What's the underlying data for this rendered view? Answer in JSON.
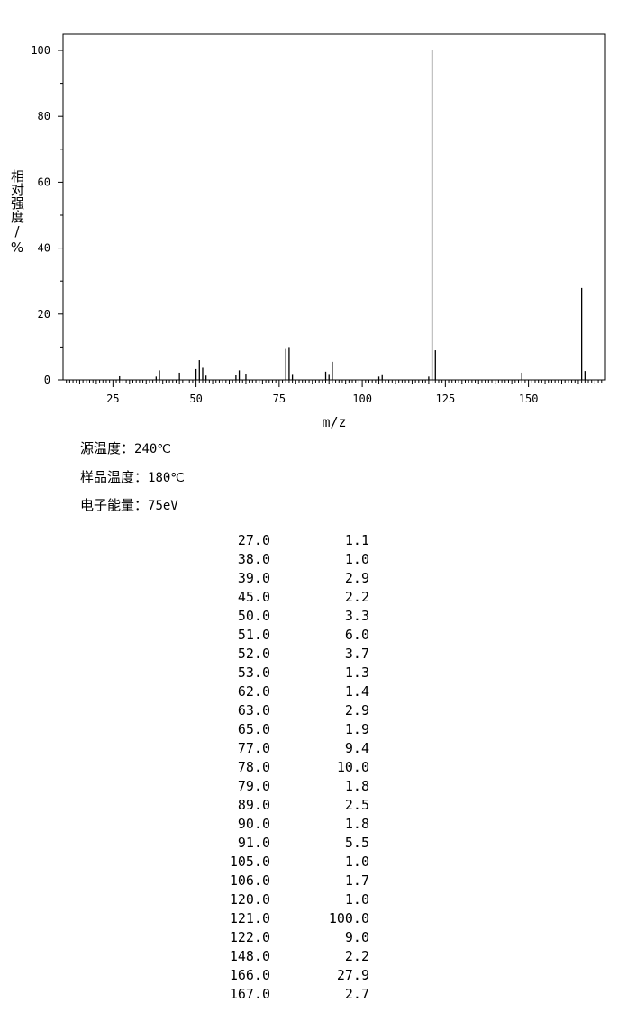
{
  "chart_data": {
    "type": "bar",
    "xlabel": "m/z",
    "ylabel": "相对强度/%",
    "xlim": [
      10,
      173
    ],
    "ylim": [
      0,
      105
    ],
    "xticks": [
      25,
      50,
      75,
      100,
      125,
      150
    ],
    "yticks": [
      0,
      20,
      40,
      60,
      80,
      100
    ],
    "grid": false,
    "x": [
      27.0,
      38.0,
      39.0,
      45.0,
      50.0,
      51.0,
      52.0,
      53.0,
      62.0,
      63.0,
      65.0,
      77.0,
      78.0,
      79.0,
      89.0,
      90.0,
      91.0,
      105.0,
      106.0,
      120.0,
      121.0,
      122.0,
      148.0,
      166.0,
      167.0
    ],
    "values": [
      1.1,
      1.0,
      2.9,
      2.2,
      3.3,
      6.0,
      3.7,
      1.3,
      1.4,
      2.9,
      1.9,
      9.4,
      10.0,
      1.8,
      2.5,
      1.8,
      5.5,
      1.0,
      1.7,
      1.0,
      100.0,
      9.0,
      2.2,
      27.9,
      2.7
    ]
  },
  "conditions": [
    {
      "label": "源温度：",
      "value": "240℃"
    },
    {
      "label": "样品温度：",
      "value": "180℃"
    },
    {
      "label": "电子能量：",
      "value": "75eV"
    }
  ],
  "peaks": [
    {
      "mz": "27.0",
      "ab": "1.1"
    },
    {
      "mz": "38.0",
      "ab": "1.0"
    },
    {
      "mz": "39.0",
      "ab": "2.9"
    },
    {
      "mz": "45.0",
      "ab": "2.2"
    },
    {
      "mz": "50.0",
      "ab": "3.3"
    },
    {
      "mz": "51.0",
      "ab": "6.0"
    },
    {
      "mz": "52.0",
      "ab": "3.7"
    },
    {
      "mz": "53.0",
      "ab": "1.3"
    },
    {
      "mz": "62.0",
      "ab": "1.4"
    },
    {
      "mz": "63.0",
      "ab": "2.9"
    },
    {
      "mz": "65.0",
      "ab": "1.9"
    },
    {
      "mz": "77.0",
      "ab": "9.4"
    },
    {
      "mz": "78.0",
      "ab": "10.0"
    },
    {
      "mz": "79.0",
      "ab": "1.8"
    },
    {
      "mz": "89.0",
      "ab": "2.5"
    },
    {
      "mz": "90.0",
      "ab": "1.8"
    },
    {
      "mz": "91.0",
      "ab": "5.5"
    },
    {
      "mz": "105.0",
      "ab": "1.0"
    },
    {
      "mz": "106.0",
      "ab": "1.7"
    },
    {
      "mz": "120.0",
      "ab": "1.0"
    },
    {
      "mz": "121.0",
      "ab": "100.0"
    },
    {
      "mz": "122.0",
      "ab": "9.0"
    },
    {
      "mz": "148.0",
      "ab": "2.2"
    },
    {
      "mz": "166.0",
      "ab": "27.9"
    },
    {
      "mz": "167.0",
      "ab": "2.7"
    }
  ]
}
